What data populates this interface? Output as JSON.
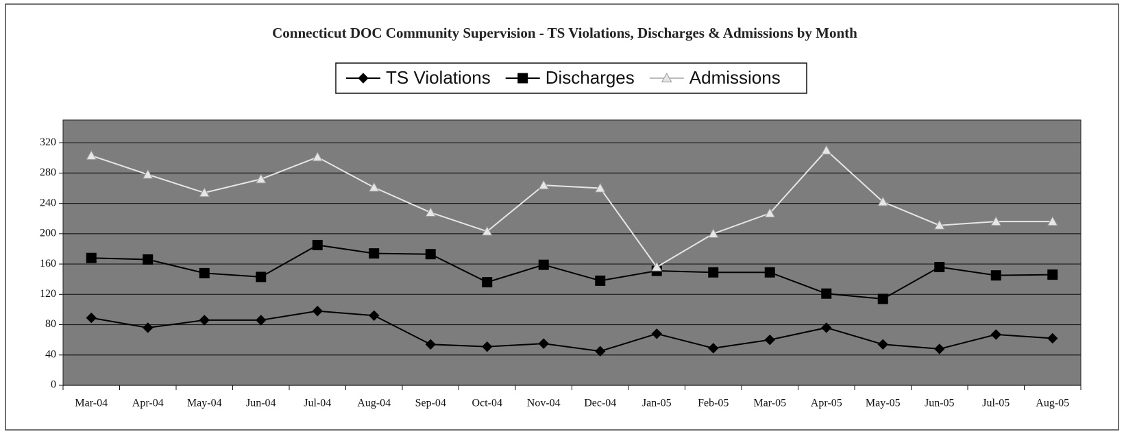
{
  "chart_data": {
    "type": "line",
    "title": "Connecticut DOC Community Supervision - TS Violations, Discharges & Admissions by Month",
    "categories": [
      "Mar-04",
      "Apr-04",
      "May-04",
      "Jun-04",
      "Jul-04",
      "Aug-04",
      "Sep-04",
      "Oct-04",
      "Nov-04",
      "Dec-04",
      "Jan-05",
      "Feb-05",
      "Mar-05",
      "Apr-05",
      "May-05",
      "Jun-05",
      "Jul-05",
      "Aug-05"
    ],
    "series": [
      {
        "name": "TS Violations",
        "color": "#000000",
        "marker": "diamond",
        "values": [
          89,
          76,
          86,
          86,
          98,
          92,
          54,
          51,
          55,
          45,
          68,
          49,
          60,
          76,
          54,
          48,
          67,
          62
        ]
      },
      {
        "name": "Discharges",
        "color": "#000000",
        "marker": "square",
        "values": [
          168,
          166,
          148,
          143,
          185,
          174,
          173,
          136,
          159,
          138,
          151,
          149,
          149,
          121,
          114,
          156,
          145,
          146
        ]
      },
      {
        "name": "Admissions",
        "color": "#e6e6e6",
        "marker": "triangle",
        "values": [
          303,
          278,
          254,
          272,
          301,
          261,
          228,
          203,
          264,
          260,
          156,
          200,
          227,
          310,
          242,
          211,
          216,
          216
        ]
      }
    ],
    "ylim": [
      0,
      350
    ],
    "yticks": [
      0,
      40,
      80,
      120,
      160,
      200,
      240,
      280,
      320
    ],
    "grid": true,
    "legend": "top"
  }
}
